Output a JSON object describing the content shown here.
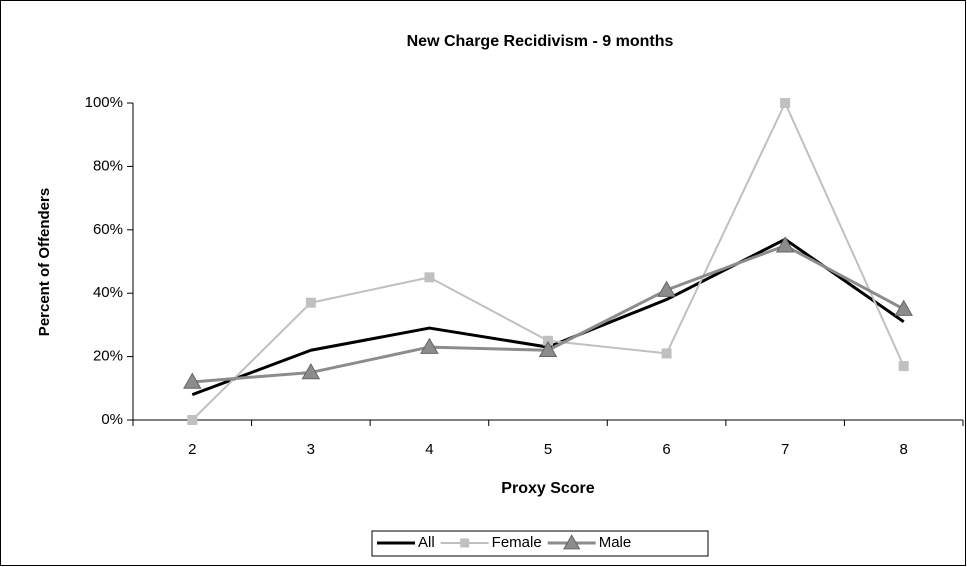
{
  "chart_data": {
    "type": "line",
    "title": "New Charge Recidivism - 9 months",
    "xlabel": "Proxy Score",
    "ylabel": "Percent of Offenders",
    "categories": [
      "2",
      "3",
      "4",
      "5",
      "6",
      "7",
      "8"
    ],
    "series": [
      {
        "name": "All",
        "color": "#000000",
        "marker": "none",
        "line_width": 3,
        "values": [
          8,
          22,
          29,
          23,
          38,
          57,
          31
        ]
      },
      {
        "name": "Female",
        "color": "#c0c0c0",
        "marker": "square",
        "line_width": 2,
        "values": [
          0,
          37,
          45,
          25,
          21,
          100,
          17
        ]
      },
      {
        "name": "Male",
        "color": "#8c8c8c",
        "marker": "triangle",
        "line_width": 3,
        "values": [
          12,
          15,
          23,
          22,
          41,
          55,
          35
        ]
      }
    ],
    "ylim": [
      0,
      100
    ],
    "yticks": [
      {
        "value": 0,
        "label": "0%"
      },
      {
        "value": 20,
        "label": "20%"
      },
      {
        "value": 40,
        "label": "40%"
      },
      {
        "value": 60,
        "label": "60%"
      },
      {
        "value": 80,
        "label": "80%"
      },
      {
        "value": 100,
        "label": "100%"
      }
    ],
    "grid": false,
    "legend": "bottom"
  }
}
